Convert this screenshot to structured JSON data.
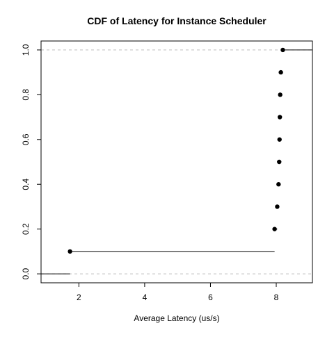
{
  "chart_data": {
    "type": "scatter",
    "subtype": "empirical-cdf-step",
    "title": "CDF of Latency for Instance Scheduler",
    "xlabel": "Average Latency (us/s)",
    "ylabel": "",
    "xlim": [
      0.85,
      9.1
    ],
    "ylim": [
      -0.04,
      1.04
    ],
    "x_ticks": [
      2,
      4,
      6,
      8
    ],
    "y_ticks": [
      0.0,
      0.2,
      0.4,
      0.6,
      0.8,
      1.0
    ],
    "x_tick_labels": [
      "2",
      "4",
      "6",
      "8"
    ],
    "y_tick_labels": [
      "0.0",
      "0.2",
      "0.4",
      "0.6",
      "0.8",
      "1.0"
    ],
    "reference_lines_y": [
      0,
      1
    ],
    "points": [
      {
        "x": 1.73,
        "y": 0.1
      },
      {
        "x": 7.95,
        "y": 0.2
      },
      {
        "x": 8.03,
        "y": 0.3
      },
      {
        "x": 8.07,
        "y": 0.4
      },
      {
        "x": 8.09,
        "y": 0.5
      },
      {
        "x": 8.1,
        "y": 0.6
      },
      {
        "x": 8.11,
        "y": 0.7
      },
      {
        "x": 8.12,
        "y": 0.8
      },
      {
        "x": 8.14,
        "y": 0.9
      },
      {
        "x": 8.2,
        "y": 1.0
      }
    ],
    "grid": false,
    "legend": "none",
    "colors": {
      "points": "#000000",
      "steps": "#000000",
      "reference_lines": "#bebebe",
      "axes": "#000000"
    }
  }
}
